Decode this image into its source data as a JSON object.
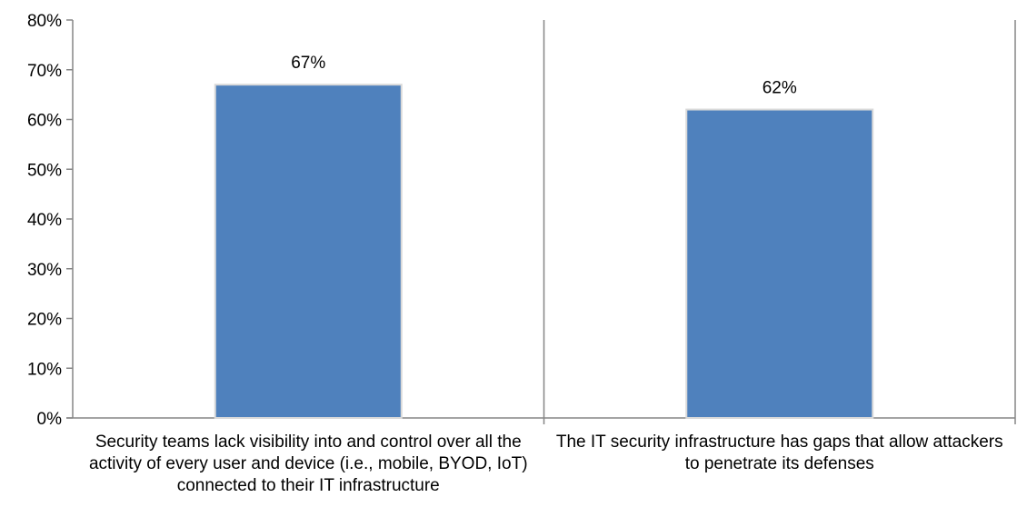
{
  "chart_data": {
    "type": "bar",
    "title": "",
    "xlabel": "",
    "ylabel": "",
    "categories": [
      "Security teams lack visibility into and control over all the activity of every user and device (i.e., mobile, BYOD, IoT) connected to their IT infrastructure",
      "The IT security infrastructure has gaps that allow attackers to penetrate its defenses"
    ],
    "values": [
      0.67,
      0.62
    ],
    "data_labels": [
      "67%",
      "62%"
    ],
    "ylim": [
      0,
      0.8
    ],
    "y_ticks": [
      0,
      0.1,
      0.2,
      0.3,
      0.4,
      0.5,
      0.6,
      0.7,
      0.8
    ],
    "y_tick_labels": [
      "0%",
      "10%",
      "20%",
      "30%",
      "40%",
      "50%",
      "60%",
      "70%",
      "80%"
    ],
    "grid": false,
    "legend": "none",
    "colors": {
      "bar": "#4F81BD",
      "bar_edge": "#D9D9D9",
      "axis": "#868686"
    }
  }
}
